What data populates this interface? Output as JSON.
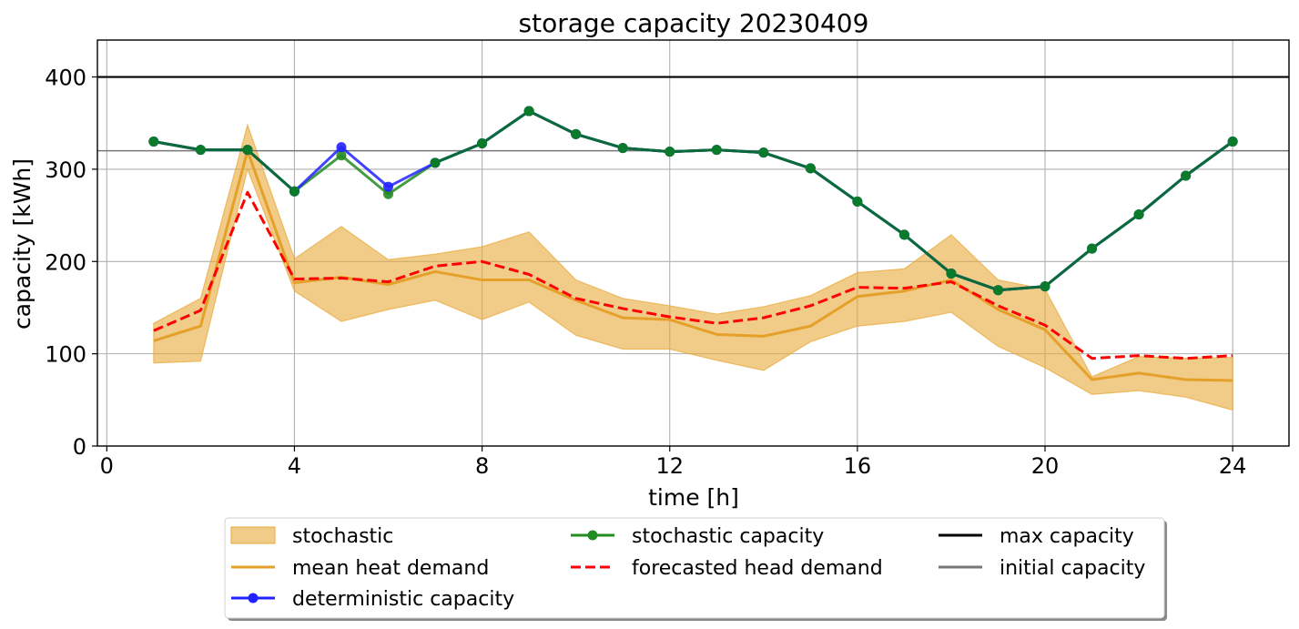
{
  "chart_data": {
    "type": "line",
    "title": "storage capacity 20230409",
    "xlabel": "time [h]",
    "ylabel": "capacity [kWh]",
    "xlim": [
      -0.2,
      25.2
    ],
    "ylim": [
      0,
      440
    ],
    "xticks": [
      0,
      4,
      8,
      12,
      16,
      20,
      24
    ],
    "yticks": [
      0,
      100,
      200,
      300,
      400
    ],
    "grid": true,
    "legend_position": "bottom-center",
    "x": [
      1,
      2,
      3,
      4,
      5,
      6,
      7,
      8,
      9,
      10,
      11,
      12,
      13,
      14,
      15,
      16,
      17,
      18,
      19,
      20,
      21,
      22,
      23,
      24
    ],
    "band": {
      "name": "stochastic",
      "color": "#e8a838",
      "lower": [
        90,
        92,
        300,
        168,
        135,
        148,
        158,
        137,
        156,
        120,
        105,
        105,
        93,
        82,
        113,
        130,
        135,
        145,
        108,
        85,
        56,
        60,
        53,
        39
      ],
      "upper": [
        133,
        160,
        348,
        203,
        238,
        202,
        208,
        216,
        232,
        180,
        160,
        152,
        143,
        151,
        163,
        188,
        192,
        229,
        180,
        170,
        75,
        97,
        95,
        96
      ]
    },
    "series": [
      {
        "name": "mean heat demand",
        "color": "#e5a02a",
        "style": "solid",
        "marker": false,
        "values": [
          114,
          130,
          320,
          177,
          183,
          175,
          189,
          180,
          180,
          158,
          139,
          137,
          121,
          119,
          130,
          162,
          168,
          180,
          148,
          126,
          72,
          79,
          72,
          71
        ]
      },
      {
        "name": "deterministic capacity",
        "color": "#2222ff",
        "style": "solid",
        "marker": true,
        "values": [
          330,
          321,
          321,
          276,
          324,
          281,
          307,
          328,
          363,
          338,
          323,
          319,
          321,
          318,
          301,
          265,
          229,
          187,
          169,
          173,
          214,
          251,
          293,
          330
        ]
      },
      {
        "name": "stochastic capacity",
        "color": "#228b22",
        "style": "solid",
        "marker": true,
        "values": [
          330,
          321,
          321,
          276,
          315,
          273,
          307,
          328,
          363,
          338,
          323,
          319,
          321,
          318,
          301,
          265,
          229,
          187,
          169,
          173,
          214,
          251,
          293,
          330
        ]
      },
      {
        "name": "forecasted head demand",
        "color": "#ff0000",
        "style": "dashed",
        "marker": false,
        "values": [
          125,
          147,
          275,
          181,
          182,
          178,
          195,
          200,
          186,
          160,
          149,
          140,
          133,
          139,
          152,
          172,
          171,
          178,
          152,
          131,
          95,
          98,
          95,
          98
        ]
      }
    ],
    "hlines": [
      {
        "name": "max capacity",
        "value": 400,
        "color": "#000000"
      },
      {
        "name": "initial capacity",
        "value": 320,
        "color": "#777777"
      }
    ]
  },
  "legend": {
    "items": [
      {
        "label": "stochastic",
        "kind": "patch"
      },
      {
        "label": "mean heat demand",
        "kind": "line"
      },
      {
        "label": "deterministic capacity",
        "kind": "marker-line"
      },
      {
        "label": "stochastic capacity",
        "kind": "marker-line"
      },
      {
        "label": "forecasted head demand",
        "kind": "dashed"
      },
      {
        "label": "max capacity",
        "kind": "line"
      },
      {
        "label": "initial capacity",
        "kind": "line"
      }
    ]
  }
}
